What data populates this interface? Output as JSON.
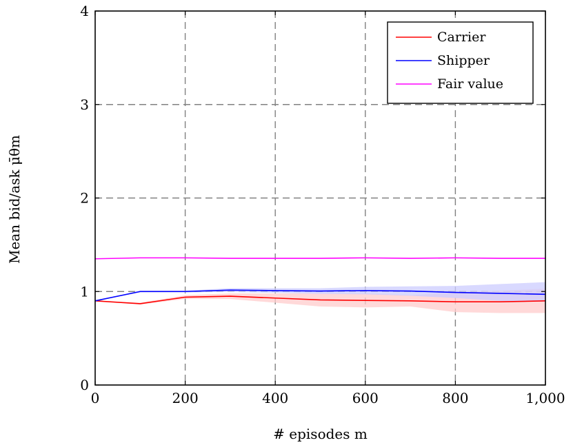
{
  "chart_data": {
    "type": "line",
    "xlabel": "# episodes m",
    "ylabel": "Mean bid/ask μ̄θm",
    "xlim": [
      0,
      1000
    ],
    "ylim": [
      0,
      4
    ],
    "x_ticks": [
      0,
      200,
      400,
      600,
      800,
      1000
    ],
    "x_tick_labels": [
      "0",
      "200",
      "400",
      "600",
      "800",
      "1,000"
    ],
    "y_ticks": [
      0,
      1,
      2,
      3,
      4
    ],
    "y_tick_labels": [
      "0",
      "1",
      "2",
      "3",
      "4"
    ],
    "grid": true,
    "grid_style": "dashed",
    "legend_position": "top-right",
    "series": [
      {
        "name": "Carrier",
        "color": "#ff0000",
        "band_color": "#ffcccc",
        "x": [
          0,
          100,
          200,
          300,
          400,
          500,
          600,
          700,
          800,
          900,
          1000
        ],
        "values": [
          0.9,
          0.87,
          0.94,
          0.95,
          0.93,
          0.91,
          0.905,
          0.9,
          0.89,
          0.89,
          0.9
        ],
        "lower": [
          0.9,
          0.86,
          0.92,
          0.92,
          0.88,
          0.84,
          0.83,
          0.84,
          0.78,
          0.77,
          0.77
        ],
        "upper": [
          0.9,
          0.88,
          0.96,
          0.98,
          0.98,
          0.98,
          0.98,
          0.96,
          0.99,
          1.01,
          1.03
        ]
      },
      {
        "name": "Shipper",
        "color": "#0000ff",
        "band_color": "#ccccff",
        "x": [
          0,
          100,
          200,
          300,
          400,
          500,
          600,
          700,
          800,
          900,
          1000
        ],
        "values": [
          0.9,
          1.0,
          1.0,
          1.015,
          1.01,
          1.005,
          1.01,
          1.005,
          0.99,
          0.98,
          0.97
        ],
        "lower": [
          0.9,
          0.99,
          0.99,
          0.995,
          0.985,
          0.975,
          0.97,
          0.955,
          0.93,
          0.9,
          0.89
        ],
        "upper": [
          0.9,
          1.01,
          1.01,
          1.035,
          1.035,
          1.035,
          1.05,
          1.055,
          1.06,
          1.08,
          1.1
        ]
      },
      {
        "name": "Fair value",
        "color": "#ff00ff",
        "x": [
          0,
          100,
          200,
          300,
          400,
          500,
          600,
          700,
          800,
          900,
          1000
        ],
        "values": [
          1.35,
          1.36,
          1.36,
          1.355,
          1.355,
          1.355,
          1.36,
          1.355,
          1.36,
          1.355,
          1.355
        ]
      }
    ]
  }
}
